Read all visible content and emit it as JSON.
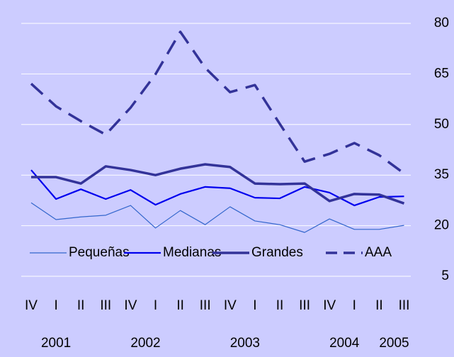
{
  "chart_data": {
    "type": "line",
    "categories": [
      "IV",
      "I",
      "II",
      "III",
      "IV",
      "I",
      "II",
      "III",
      "IV",
      "I",
      "II",
      "III",
      "IV",
      "I",
      "II",
      "III"
    ],
    "year_labels": [
      "2001",
      "2002",
      "2003",
      "2004",
      "2005"
    ],
    "ylim": [
      5,
      80
    ],
    "yticks": [
      5,
      20,
      35,
      50,
      65,
      80
    ],
    "grid": true,
    "y_axis_side": "right",
    "background": "#ccccff",
    "legend": "bottom-left",
    "series": [
      {
        "name": "Pequeñas",
        "color": "#3366cc",
        "width": 1.2,
        "dash": false,
        "values": [
          26.8,
          21.8,
          22.6,
          23.1,
          26,
          19.3,
          24.5,
          20.3,
          25.6,
          21.4,
          20.3,
          18,
          22,
          18.9,
          18.9,
          20.1
        ]
      },
      {
        "name": "Medianas",
        "color": "#0000ee",
        "width": 2.2,
        "dash": false,
        "values": [
          36.5,
          27.9,
          30.8,
          27.9,
          30.6,
          26.2,
          29.4,
          31.5,
          31.1,
          28.3,
          28.1,
          31.5,
          29.8,
          26,
          28.5,
          28.7
        ]
      },
      {
        "name": "Grandes",
        "color": "#333399",
        "width": 3.5,
        "dash": false,
        "values": [
          34.4,
          34.4,
          32.5,
          37.6,
          36.5,
          35,
          36.9,
          38.2,
          37.4,
          32.5,
          32.3,
          32.5,
          27.3,
          29.4,
          29.2,
          26.6
        ]
      },
      {
        "name": "AAA",
        "color": "#333399",
        "width": 3.5,
        "dash": true,
        "values": [
          62.1,
          55.4,
          51,
          47,
          55,
          64.9,
          77.5,
          66.8,
          59.6,
          61.7,
          50.2,
          39,
          41.3,
          44.5,
          40.9,
          35.5
        ]
      }
    ]
  }
}
